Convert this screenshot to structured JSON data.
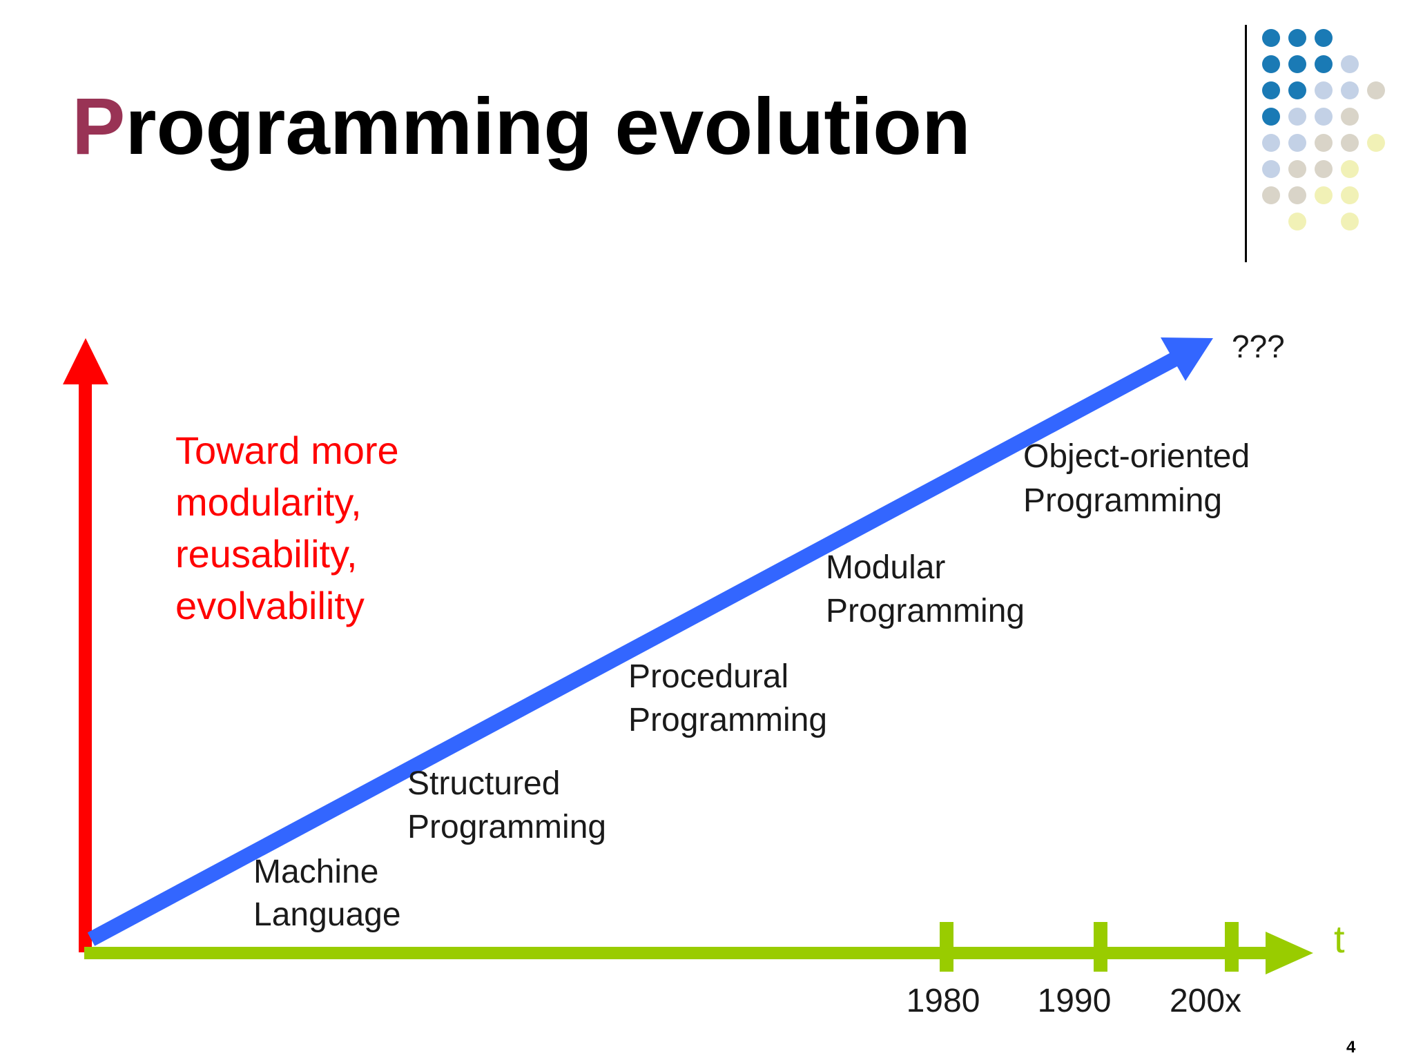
{
  "slide": {
    "title_first_letter": "P",
    "title_rest": "rogramming evolution",
    "slide_number": "4",
    "accent_color": "#993355"
  },
  "diagram": {
    "vertical_axis_color": "#ff0000",
    "progress_arrow_color": "#3366ff",
    "time_axis_color": "#99cc00",
    "vertical_axis_caption": [
      "Toward more",
      "modularity,",
      "reusability,",
      "evolvability"
    ],
    "time_axis_label": "t",
    "time_ticks": [
      "1980",
      "1990",
      "200x"
    ],
    "arrow_end_label": "???",
    "stages": [
      {
        "line1": "Machine",
        "line2": "Language"
      },
      {
        "line1": "Structured",
        "line2": "Programming"
      },
      {
        "line1": "Procedural",
        "line2": "Programming"
      },
      {
        "line1": "Modular",
        "line2": "Programming"
      },
      {
        "line1": "Object-oriented",
        "line2": "Programming"
      }
    ]
  },
  "decoration": {
    "dot_colors": {
      "blue": "#1a7ab5",
      "lightblue": "#c3d1e6",
      "gray": "#d9d4c8",
      "yellow": "#f1f1b6"
    }
  }
}
